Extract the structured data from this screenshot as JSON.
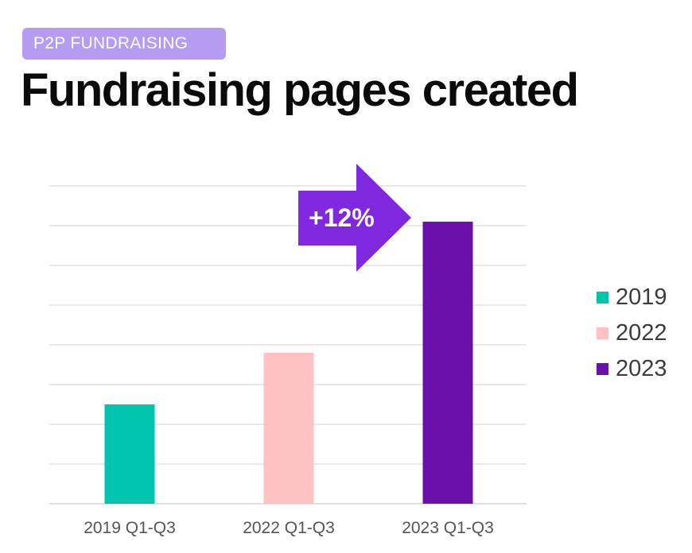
{
  "header": {
    "badge": "P2P FUNDRAISING",
    "title": "Fundraising pages created"
  },
  "colors": {
    "badge_bg": "#b49cf0",
    "arrow": "#8028e0",
    "series": [
      "#00c4ad",
      "#ffc2c4",
      "#6a11a9"
    ],
    "grid": "#e4e4e4"
  },
  "chart_data": {
    "type": "bar",
    "categories": [
      "2019 Q1-Q3",
      "2022 Q1-Q3",
      "2023 Q1-Q3"
    ],
    "values": [
      0.25,
      0.38,
      0.71
    ],
    "value_unit": "relative bar height (no value axis printed)",
    "ylim": [
      0,
      0.8
    ],
    "grid": true,
    "gridline_count": 8,
    "legend": {
      "position": "right",
      "entries": [
        "2019",
        "2022",
        "2023"
      ]
    },
    "annotation": {
      "text": "+12%",
      "shape": "right-arrow",
      "points_to": "2023 Q1-Q3"
    }
  }
}
